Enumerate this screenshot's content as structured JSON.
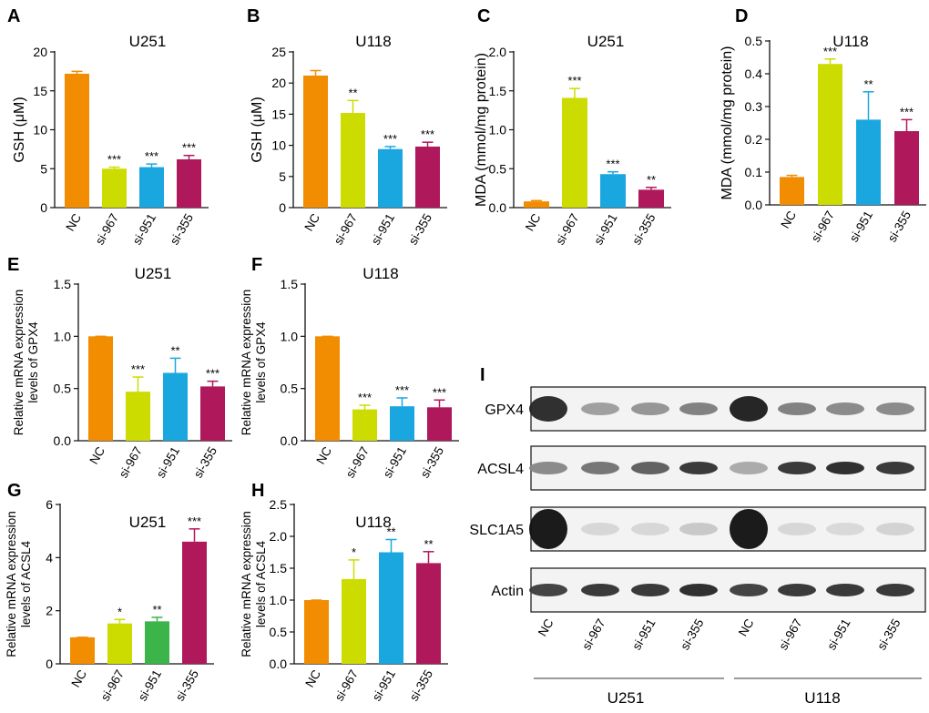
{
  "colors": {
    "NC": "#f28c00",
    "si-967": "#cddc00",
    "si-951": "#1aa7e0",
    "si-355": "#b0185c",
    "si-951-alt": "#3bb54a",
    "axis": "#111111"
  },
  "chart_data": [
    {
      "panel": "A",
      "type": "bar",
      "title": "U251",
      "ylabel": "GSH (μM)",
      "ylim": [
        0,
        20
      ],
      "yticks": [
        0,
        5,
        10,
        15,
        20
      ],
      "categories": [
        "NC",
        "si-967",
        "si-951",
        "si-355"
      ],
      "values": [
        17.2,
        5.0,
        5.2,
        6.2
      ],
      "errors": [
        0.3,
        0.2,
        0.4,
        0.5
      ],
      "significance": [
        "",
        "***",
        "***",
        "***"
      ]
    },
    {
      "panel": "B",
      "type": "bar",
      "title": "U118",
      "ylabel": "GSH (μM)",
      "ylim": [
        0,
        25
      ],
      "yticks": [
        0,
        5,
        10,
        15,
        20,
        25
      ],
      "categories": [
        "NC",
        "si-967",
        "si-951",
        "si-355"
      ],
      "values": [
        21.2,
        15.2,
        9.4,
        9.8
      ],
      "errors": [
        0.8,
        2.0,
        0.4,
        0.7
      ],
      "significance": [
        "",
        "**",
        "***",
        "***"
      ]
    },
    {
      "panel": "C",
      "type": "bar",
      "title": "U251",
      "ylabel": "MDA (mmol/mg protein)",
      "ylim": [
        0,
        2.0
      ],
      "yticks": [
        0.0,
        0.5,
        1.0,
        1.5,
        2.0
      ],
      "ytick_labels": [
        "0.0",
        "0.5",
        "1.0",
        "1.5",
        "2.0"
      ],
      "categories": [
        "NC",
        "si-967",
        "si-951",
        "si-355"
      ],
      "values": [
        0.08,
        1.41,
        0.43,
        0.23
      ],
      "errors": [
        0.01,
        0.12,
        0.03,
        0.03
      ],
      "significance": [
        "",
        "***",
        "***",
        "**"
      ]
    },
    {
      "panel": "D",
      "type": "bar",
      "title": "U118",
      "ylabel": "MDA (mmol/mg protein)",
      "ylim": [
        0,
        0.5
      ],
      "yticks": [
        0.0,
        0.1,
        0.2,
        0.3,
        0.4,
        0.5
      ],
      "ytick_labels": [
        "0.0",
        "0.1",
        "0.2",
        "0.3",
        "0.4",
        "0.5"
      ],
      "categories": [
        "NC",
        "si-967",
        "si-951",
        "si-355"
      ],
      "values": [
        0.085,
        0.43,
        0.26,
        0.225
      ],
      "errors": [
        0.005,
        0.015,
        0.085,
        0.035
      ],
      "significance": [
        "",
        "***",
        "**",
        "***"
      ]
    },
    {
      "panel": "E",
      "type": "bar",
      "title": "U251",
      "ylabel": "Relative mRNA expression levels of GPX4",
      "ylim": [
        0,
        1.5
      ],
      "yticks": [
        0.0,
        0.5,
        1.0,
        1.5
      ],
      "ytick_labels": [
        "0.0",
        "0.5",
        "1.0",
        "1.5"
      ],
      "categories": [
        "NC",
        "si-967",
        "si-951",
        "si-355"
      ],
      "values": [
        1.0,
        0.47,
        0.65,
        0.52
      ],
      "errors": [
        0.0,
        0.14,
        0.14,
        0.05
      ],
      "significance": [
        "",
        "***",
        "**",
        "***"
      ]
    },
    {
      "panel": "F",
      "type": "bar",
      "title": "U118",
      "ylabel": "Relative mRNA expression levels of GPX4",
      "ylim": [
        0,
        1.5
      ],
      "yticks": [
        0.0,
        0.5,
        1.0,
        1.5
      ],
      "ytick_labels": [
        "0.0",
        "0.5",
        "1.0",
        "1.5"
      ],
      "categories": [
        "NC",
        "si-967",
        "si-951",
        "si-355"
      ],
      "values": [
        1.0,
        0.3,
        0.33,
        0.32
      ],
      "errors": [
        0.0,
        0.04,
        0.08,
        0.07
      ],
      "significance": [
        "",
        "***",
        "***",
        "***"
      ]
    },
    {
      "panel": "G",
      "type": "bar",
      "title": "U251",
      "ylabel": "Relative mRNA expression levels of ACSL4",
      "ylim": [
        0,
        6
      ],
      "yticks": [
        0,
        2,
        4,
        6
      ],
      "categories": [
        "NC",
        "si-967",
        "si-951",
        "si-355"
      ],
      "values": [
        1.0,
        1.52,
        1.6,
        4.6
      ],
      "errors": [
        0.0,
        0.15,
        0.15,
        0.48
      ],
      "significance": [
        "",
        "*",
        "**",
        "***"
      ]
    },
    {
      "panel": "H",
      "type": "bar",
      "title": "U118",
      "ylabel": "Relative mRNA expression levels of ACSL4",
      "ylim": [
        0,
        2.5
      ],
      "yticks": [
        0.0,
        0.5,
        1.0,
        1.5,
        2.0,
        2.5
      ],
      "ytick_labels": [
        "0.0",
        "0.5",
        "1.0",
        "1.5",
        "2.0",
        "2.5"
      ],
      "categories": [
        "NC",
        "si-967",
        "si-951",
        "si-355"
      ],
      "values": [
        1.0,
        1.33,
        1.75,
        1.58
      ],
      "errors": [
        0.0,
        0.3,
        0.2,
        0.18
      ],
      "significance": [
        "",
        "*",
        "**",
        "**"
      ]
    }
  ],
  "blot": {
    "panel": "I",
    "rows": [
      {
        "label": "GPX4",
        "intensity": [
          0.9,
          0.35,
          0.4,
          0.5,
          0.95,
          0.5,
          0.45,
          0.45
        ]
      },
      {
        "label": "ACSL4",
        "intensity": [
          0.45,
          0.55,
          0.65,
          0.85,
          0.3,
          0.85,
          0.9,
          0.85
        ]
      },
      {
        "label": "SLC1A5",
        "intensity": [
          1.0,
          0.08,
          0.08,
          0.15,
          1.0,
          0.08,
          0.07,
          0.1
        ]
      },
      {
        "label": "Actin",
        "intensity": [
          0.8,
          0.85,
          0.85,
          0.9,
          0.8,
          0.85,
          0.85,
          0.85
        ]
      }
    ],
    "lanes": [
      "NC",
      "si-967",
      "si-951",
      "si-355",
      "NC",
      "si-967",
      "si-951",
      "si-355"
    ],
    "groups": [
      "U251",
      "U118"
    ]
  }
}
